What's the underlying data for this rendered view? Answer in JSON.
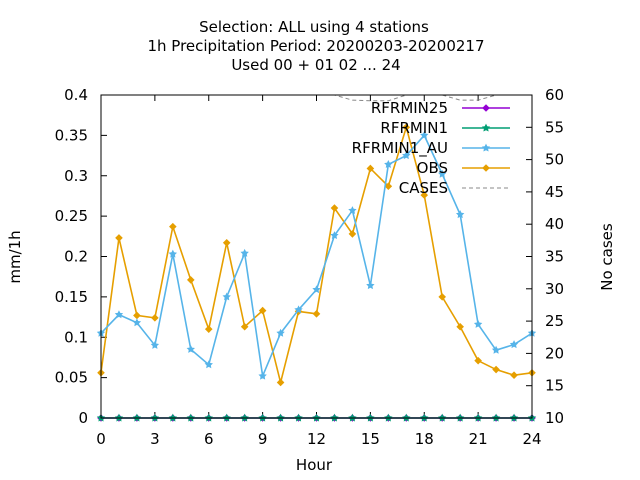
{
  "chart_data": {
    "type": "line",
    "title_lines": [
      "Selection: ALL using     4 stations",
      "1h Precipitation   Period: 20200203-20200217",
      "Used  00 + 01 02 ... 24"
    ],
    "xlabel": "Hour",
    "ylabel": "mm/1h",
    "y2label": "No cases",
    "xlim": [
      0,
      24
    ],
    "ylim": [
      0,
      0.4
    ],
    "y2lim": [
      10,
      60
    ],
    "x_ticks": [
      0,
      3,
      6,
      9,
      12,
      15,
      18,
      21,
      24
    ],
    "x_tick_labels": [
      "0",
      "3",
      "6",
      "9",
      "12",
      "15",
      "18",
      "21",
      "24"
    ],
    "y_ticks": [
      0,
      0.05,
      0.1,
      0.15,
      0.2,
      0.25,
      0.3,
      0.35,
      0.4
    ],
    "y_tick_labels": [
      "0",
      "0.05",
      "0.1",
      "0.15",
      "0.2",
      "0.25",
      "0.3",
      "0.35",
      "0.4"
    ],
    "y2_ticks": [
      10,
      15,
      20,
      25,
      30,
      35,
      40,
      45,
      50,
      55,
      60
    ],
    "y2_tick_labels": [
      "10",
      "15",
      "20",
      "25",
      "30",
      "35",
      "40",
      "45",
      "50",
      "55",
      "60"
    ],
    "grid": false,
    "legend_position": "top-right",
    "x": [
      0,
      1,
      2,
      3,
      4,
      5,
      6,
      7,
      8,
      9,
      10,
      11,
      12,
      13,
      14,
      15,
      16,
      17,
      18,
      19,
      20,
      21,
      22,
      23,
      24
    ],
    "series": [
      {
        "name": "RFRMIN25",
        "axis": "left",
        "color": "#9400d3",
        "marker": "diamond",
        "values": [
          0,
          0,
          0,
          0,
          0,
          0,
          0,
          0,
          0,
          0,
          0,
          0,
          0,
          0,
          0,
          0,
          0,
          0,
          0,
          0,
          0,
          0,
          0,
          0,
          0
        ]
      },
      {
        "name": "RFRMIN1",
        "axis": "left",
        "color": "#009e73",
        "marker": "star",
        "values": [
          0,
          0,
          0,
          0,
          0,
          0,
          0,
          0,
          0,
          0,
          0,
          0,
          0,
          0,
          0,
          0,
          0,
          0,
          0,
          0,
          0,
          0,
          0,
          0,
          0
        ]
      },
      {
        "name": "RFRMIN1_AU",
        "axis": "left",
        "color": "#56b4e9",
        "marker": "star",
        "values": [
          0.105,
          0.128,
          0.118,
          0.09,
          0.203,
          0.085,
          0.066,
          0.15,
          0.204,
          0.052,
          0.105,
          0.134,
          0.159,
          0.226,
          0.257,
          0.164,
          0.314,
          0.325,
          0.35,
          0.302,
          0.252,
          0.116,
          0.084,
          0.091,
          0.105
        ]
      },
      {
        "name": "OBS",
        "axis": "left",
        "color": "#e69f00",
        "marker": "diamond",
        "values": [
          0.056,
          0.223,
          0.127,
          0.124,
          0.237,
          0.171,
          0.11,
          0.217,
          0.113,
          0.133,
          0.044,
          0.132,
          0.129,
          0.26,
          0.228,
          0.309,
          0.287,
          0.36,
          0.276,
          0.15,
          0.113,
          0.071,
          0.06,
          0.053,
          0.056
        ]
      },
      {
        "name": "CASES",
        "axis": "right",
        "color": "#888888",
        "dashed": true,
        "values": [
          60,
          60,
          60,
          60,
          60,
          60,
          60,
          60,
          60,
          60,
          60,
          60,
          60,
          60,
          59.2,
          59.1,
          59.1,
          60,
          60,
          60,
          59.2,
          59.2,
          60,
          60,
          60
        ]
      }
    ]
  }
}
